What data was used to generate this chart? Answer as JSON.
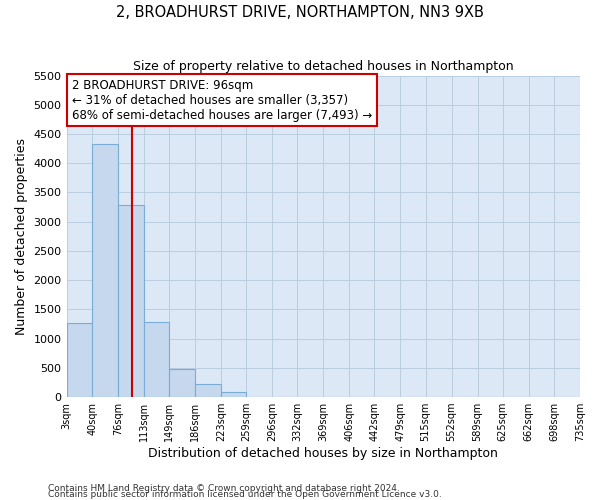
{
  "title": "2, BROADHURST DRIVE, NORTHAMPTON, NN3 9XB",
  "subtitle": "Size of property relative to detached houses in Northampton",
  "xlabel": "Distribution of detached houses by size in Northampton",
  "ylabel": "Number of detached properties",
  "bar_color": "#c5d8ee",
  "bar_edge_color": "#7aadd4",
  "plot_bg_color": "#dce8f5",
  "fig_bg_color": "#ffffff",
  "grid_color": "#b8cfe0",
  "vline_x": 96,
  "vline_color": "#cc0000",
  "bin_edges": [
    3,
    40,
    76,
    113,
    149,
    186,
    223,
    259,
    296,
    332,
    369,
    406,
    442,
    479,
    515,
    552,
    589,
    625,
    662,
    698,
    735
  ],
  "bin_labels": [
    "3sqm",
    "40sqm",
    "76sqm",
    "113sqm",
    "149sqm",
    "186sqm",
    "223sqm",
    "259sqm",
    "296sqm",
    "332sqm",
    "369sqm",
    "406sqm",
    "442sqm",
    "479sqm",
    "515sqm",
    "552sqm",
    "589sqm",
    "625sqm",
    "662sqm",
    "698sqm",
    "735sqm"
  ],
  "counts": [
    1270,
    4330,
    3290,
    1290,
    480,
    230,
    80,
    0,
    0,
    0,
    0,
    0,
    0,
    0,
    0,
    0,
    0,
    0,
    0,
    0
  ],
  "ylim": [
    0,
    5500
  ],
  "yticks": [
    0,
    500,
    1000,
    1500,
    2000,
    2500,
    3000,
    3500,
    4000,
    4500,
    5000,
    5500
  ],
  "annotation_line1": "2 BROADHURST DRIVE: 96sqm",
  "annotation_line2": "← 31% of detached houses are smaller (3,357)",
  "annotation_line3": "68% of semi-detached houses are larger (7,493) →",
  "annotation_box_color": "#ffffff",
  "annotation_box_edge": "#cc0000",
  "footer1": "Contains HM Land Registry data © Crown copyright and database right 2024.",
  "footer2": "Contains public sector information licensed under the Open Government Licence v3.0."
}
